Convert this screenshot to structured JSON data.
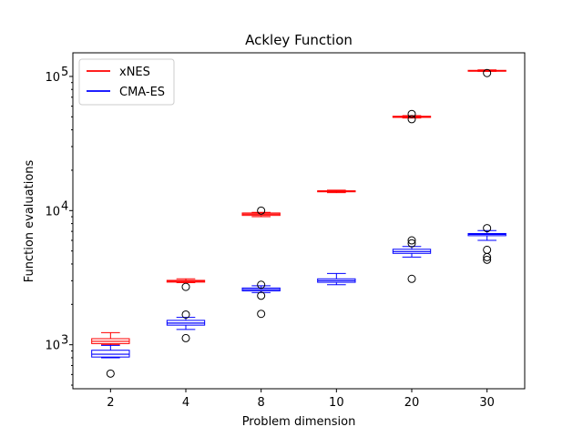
{
  "chart_data": {
    "type": "boxplot",
    "title": "Ackley Function",
    "xlabel": "Problem dimension",
    "ylabel": "Function evaluations",
    "yscale": "log",
    "ylim": [
      470,
      150000
    ],
    "categories": [
      "2",
      "4",
      "8",
      "10",
      "20",
      "30"
    ],
    "ytick_labels": [
      {
        "value": 1000,
        "base": "10",
        "exp": "3"
      },
      {
        "value": 10000,
        "base": "10",
        "exp": "4"
      },
      {
        "value": 100000,
        "base": "10",
        "exp": "5"
      }
    ],
    "legend_position": "top-left",
    "grid": false,
    "series": [
      {
        "name": "xNES",
        "color": "#ff0000",
        "boxes": [
          {
            "category": "2",
            "whislo": 1000,
            "q1": 1020,
            "med": 1060,
            "q3": 1110,
            "whishi": 1230,
            "fliers": []
          },
          {
            "category": "4",
            "whislo": 2900,
            "q1": 2930,
            "med": 2980,
            "q3": 3020,
            "whishi": 3100,
            "fliers": []
          },
          {
            "category": "8",
            "whislo": 9000,
            "q1": 9200,
            "med": 9400,
            "q3": 9600,
            "whishi": 9700,
            "fliers": [
              10000
            ]
          },
          {
            "category": "10",
            "whislo": 13600,
            "q1": 13800,
            "med": 13900,
            "q3": 14050,
            "whishi": 14200,
            "fliers": []
          },
          {
            "category": "20",
            "whislo": 49000,
            "q1": 49500,
            "med": 50000,
            "q3": 50500,
            "whishi": 51000,
            "fliers": [
              48000,
              52500
            ]
          },
          {
            "category": "30",
            "whislo": 109000,
            "q1": 110000,
            "med": 110500,
            "q3": 111000,
            "whishi": 112000,
            "fliers": [
              106000
            ]
          }
        ]
      },
      {
        "name": "CMA-ES",
        "color": "#0000ff",
        "boxes": [
          {
            "category": "2",
            "whislo": 800,
            "q1": 810,
            "med": 850,
            "q3": 910,
            "whishi": 990,
            "fliers": [
              610
            ]
          },
          {
            "category": "4",
            "whislo": 1300,
            "q1": 1400,
            "med": 1450,
            "q3": 1520,
            "whishi": 1600,
            "fliers": [
              1120,
              1680,
              2700
            ]
          },
          {
            "category": "8",
            "whislo": 2450,
            "q1": 2520,
            "med": 2580,
            "q3": 2650,
            "whishi": 2750,
            "fliers": [
              1700,
              2320,
              2800
            ]
          },
          {
            "category": "10",
            "whislo": 2800,
            "q1": 2920,
            "med": 3000,
            "q3": 3100,
            "whishi": 3400,
            "fliers": []
          },
          {
            "category": "20",
            "whislo": 4500,
            "q1": 4800,
            "med": 4950,
            "q3": 5150,
            "whishi": 5400,
            "fliers": [
              3100,
              5700,
              6000
            ]
          },
          {
            "category": "30",
            "whislo": 6000,
            "q1": 6500,
            "med": 6650,
            "q3": 6750,
            "whishi": 7100,
            "fliers": [
              4300,
              4500,
              5100,
              7400
            ]
          }
        ]
      }
    ]
  }
}
